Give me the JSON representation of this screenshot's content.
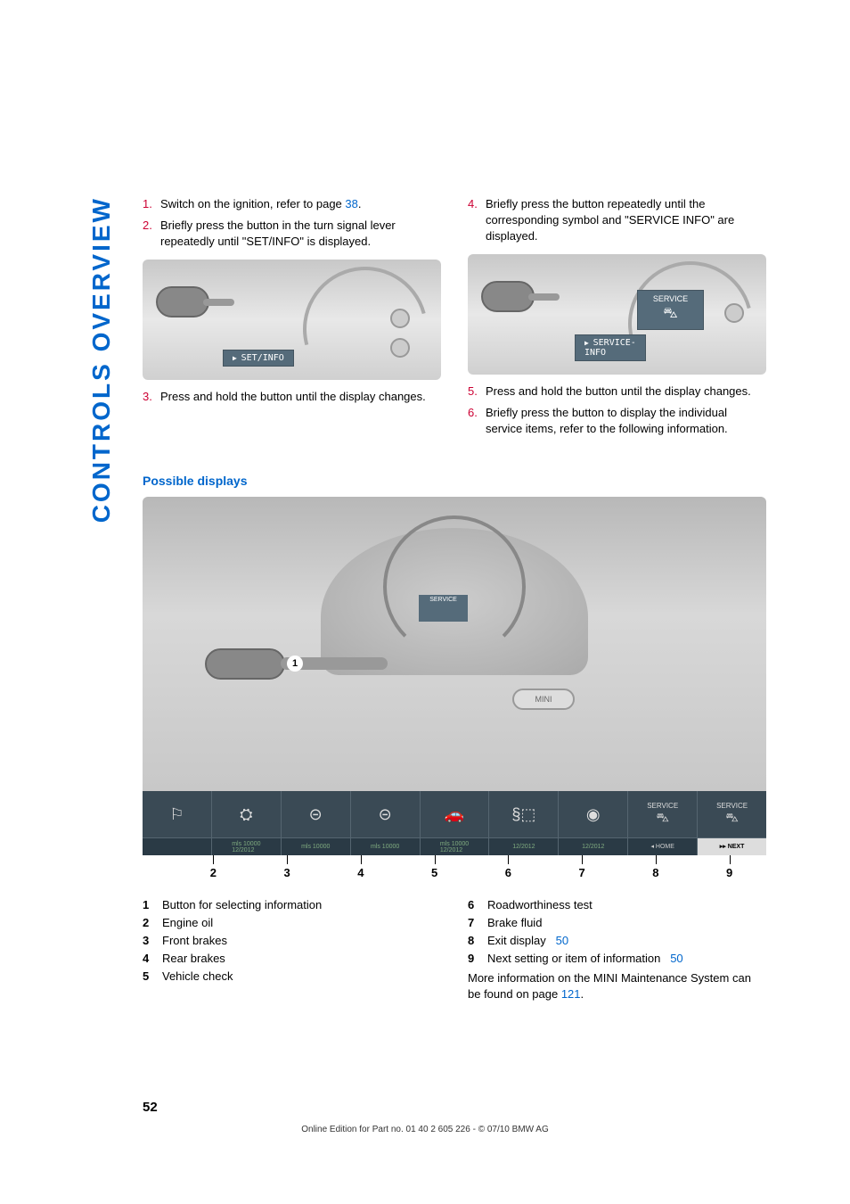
{
  "side_tab": "CONTROLS OVERVIEW",
  "left_steps": [
    {
      "num": "1.",
      "text_pre": "Switch on the ignition, refer to page ",
      "link": "38",
      "text_post": "."
    },
    {
      "num": "2.",
      "text": "Briefly press the button in the turn signal lever repeatedly until \"SET/INFO\" is displayed."
    }
  ],
  "left_img_label": "SET/INFO",
  "left_step3": {
    "num": "3.",
    "text": "Press and hold the button until the display changes."
  },
  "right_steps": [
    {
      "num": "4.",
      "text": "Briefly press the button repeatedly until the corresponding symbol and \"SERVICE INFO\" are displayed."
    }
  ],
  "right_img_service": "SERVICE",
  "right_img_label": "SERVICE-\nINFO",
  "right_step5": {
    "num": "5.",
    "text": "Press and hold the button until the display changes."
  },
  "right_step6": {
    "num": "6.",
    "text": "Briefly press the button to display the individual service items, refer to the following information."
  },
  "section_heading": "Possible displays",
  "dash_badge": "MINI",
  "dash_service": "SERVICE",
  "strip": [
    {
      "icon": "⚐",
      "sub": ""
    },
    {
      "icon": "⛭",
      "sub": "mls 10000\n12/2012",
      "cls": "green"
    },
    {
      "icon": "⊝",
      "sub": "mls 10000",
      "cls": "green"
    },
    {
      "icon": "⊝",
      "sub": "mls 10000",
      "cls": "green"
    },
    {
      "icon": "🚗",
      "sub": "mls 10000\n12/2012",
      "cls": "green"
    },
    {
      "icon": "§⬚",
      "sub": "12/2012",
      "cls": "green"
    },
    {
      "icon": "◉",
      "sub": "12/2012",
      "cls": "green"
    },
    {
      "icon": "SERVICE",
      "sub": "◂ HOME",
      "cls": "home"
    },
    {
      "icon": "SERVICE",
      "sub": "▸▸ NEXT",
      "cls": "next"
    }
  ],
  "tick_numbers": [
    "2",
    "3",
    "4",
    "5",
    "6",
    "7",
    "8",
    "9"
  ],
  "legend_left": [
    {
      "num": "1",
      "text": "Button for selecting information"
    },
    {
      "num": "2",
      "text": "Engine oil"
    },
    {
      "num": "3",
      "text": "Front brakes"
    },
    {
      "num": "4",
      "text": "Rear brakes"
    },
    {
      "num": "5",
      "text": "Vehicle check"
    }
  ],
  "legend_right": [
    {
      "num": "6",
      "text": "Roadworthiness test",
      "link": ""
    },
    {
      "num": "7",
      "text": "Brake fluid",
      "link": ""
    },
    {
      "num": "8",
      "text": "Exit display",
      "link": "50"
    },
    {
      "num": "9",
      "text": "Next setting or item of information",
      "link": "50"
    }
  ],
  "legend_note_pre": "More information on the MINI Maintenance System can be found on page ",
  "legend_note_link": "121",
  "legend_note_post": ".",
  "page_num": "52",
  "footer": "Online Edition for Part no. 01 40 2 605 226 - © 07/10  BMW AG"
}
